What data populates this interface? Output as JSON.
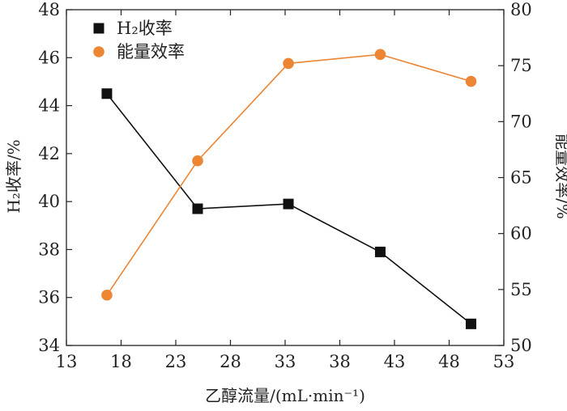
{
  "chart_data": {
    "type": "line",
    "xlabel": "乙醇流量/(mL·min⁻¹)",
    "ylabel": "H₂收率/%",
    "y2label": "能量效率/%",
    "xlim": [
      13,
      53
    ],
    "xticks": [
      13,
      18,
      23,
      28,
      33,
      38,
      43,
      48,
      53
    ],
    "ylim": [
      34,
      48
    ],
    "yticks": [
      34,
      36,
      38,
      40,
      42,
      44,
      46,
      48
    ],
    "y2lim": [
      50,
      80
    ],
    "y2ticks": [
      50,
      55,
      60,
      65,
      70,
      75,
      80
    ],
    "grid": false,
    "legend_position": "top-left",
    "series": [
      {
        "name": "H₂收率",
        "axis": "left",
        "marker": "square",
        "color": "#111111",
        "x": [
          16.7,
          25.0,
          33.3,
          41.7,
          50.0
        ],
        "values": [
          44.5,
          39.7,
          39.9,
          37.9,
          34.9
        ]
      },
      {
        "name": "能量效率",
        "axis": "right",
        "marker": "circle",
        "color": "#ec8534",
        "x": [
          16.7,
          25.0,
          33.3,
          41.7,
          50.0
        ],
        "values": [
          54.5,
          66.5,
          75.2,
          76.0,
          73.6
        ]
      }
    ]
  }
}
